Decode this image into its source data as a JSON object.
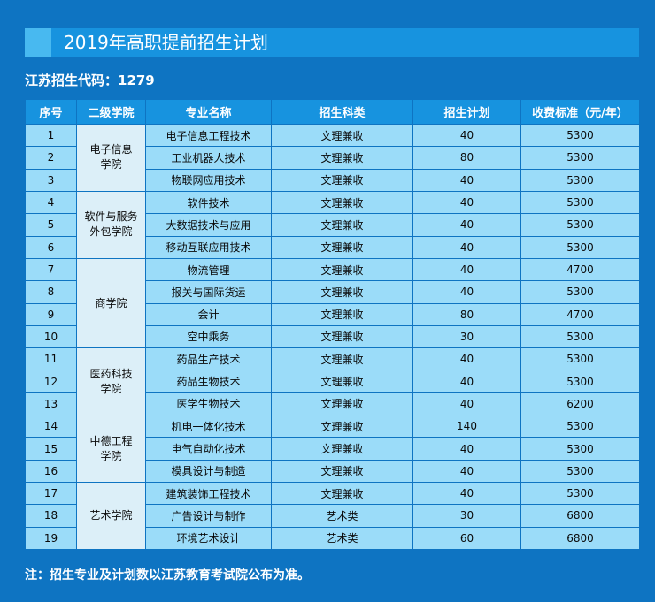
{
  "title": "2019年高职提前招生计划",
  "code_line": "江苏招生代码：1279",
  "columns": [
    "序号",
    "二级学院",
    "专业名称",
    "招生科类",
    "招生计划",
    "收费标准（元/年）"
  ],
  "colleges": [
    {
      "name": "电子信息\n学院",
      "rows": [
        {
          "no": "1",
          "major": "电子信息工程技术",
          "type": "文理兼收",
          "plan": "40",
          "fee": "5300"
        },
        {
          "no": "2",
          "major": "工业机器人技术",
          "type": "文理兼收",
          "plan": "80",
          "fee": "5300"
        },
        {
          "no": "3",
          "major": "物联网应用技术",
          "type": "文理兼收",
          "plan": "40",
          "fee": "5300"
        }
      ]
    },
    {
      "name": "软件与服务\n外包学院",
      "rows": [
        {
          "no": "4",
          "major": "软件技术",
          "type": "文理兼收",
          "plan": "40",
          "fee": "5300"
        },
        {
          "no": "5",
          "major": "大数据技术与应用",
          "type": "文理兼收",
          "plan": "40",
          "fee": "5300"
        },
        {
          "no": "6",
          "major": "移动互联应用技术",
          "type": "文理兼收",
          "plan": "40",
          "fee": "5300"
        }
      ]
    },
    {
      "name": "商学院",
      "rows": [
        {
          "no": "7",
          "major": "物流管理",
          "type": "文理兼收",
          "plan": "40",
          "fee": "4700"
        },
        {
          "no": "8",
          "major": "报关与国际货运",
          "type": "文理兼收",
          "plan": "40",
          "fee": "5300"
        },
        {
          "no": "9",
          "major": "会计",
          "type": "文理兼收",
          "plan": "80",
          "fee": "4700"
        },
        {
          "no": "10",
          "major": "空中乘务",
          "type": "文理兼收",
          "plan": "30",
          "fee": "5300"
        }
      ]
    },
    {
      "name": "医药科技\n学院",
      "rows": [
        {
          "no": "11",
          "major": "药品生产技术",
          "type": "文理兼收",
          "plan": "40",
          "fee": "5300"
        },
        {
          "no": "12",
          "major": "药品生物技术",
          "type": "文理兼收",
          "plan": "40",
          "fee": "5300"
        },
        {
          "no": "13",
          "major": "医学生物技术",
          "type": "文理兼收",
          "plan": "40",
          "fee": "6200"
        }
      ]
    },
    {
      "name": "中德工程\n学院",
      "rows": [
        {
          "no": "14",
          "major": "机电一体化技术",
          "type": "文理兼收",
          "plan": "140",
          "fee": "5300"
        },
        {
          "no": "15",
          "major": "电气自动化技术",
          "type": "文理兼收",
          "plan": "40",
          "fee": "5300"
        },
        {
          "no": "16",
          "major": "模具设计与制造",
          "type": "文理兼收",
          "plan": "40",
          "fee": "5300"
        }
      ]
    },
    {
      "name": "艺术学院",
      "rows": [
        {
          "no": "17",
          "major": "建筑装饰工程技术",
          "type": "文理兼收",
          "plan": "40",
          "fee": "5300"
        },
        {
          "no": "18",
          "major": "广告设计与制作",
          "type": "艺术类",
          "plan": "30",
          "fee": "6800"
        },
        {
          "no": "19",
          "major": "环境艺术设计",
          "type": "艺术类",
          "plan": "60",
          "fee": "6800"
        }
      ]
    }
  ],
  "note": "注：招生专业及计划数以江苏教育考试院公布为准。"
}
